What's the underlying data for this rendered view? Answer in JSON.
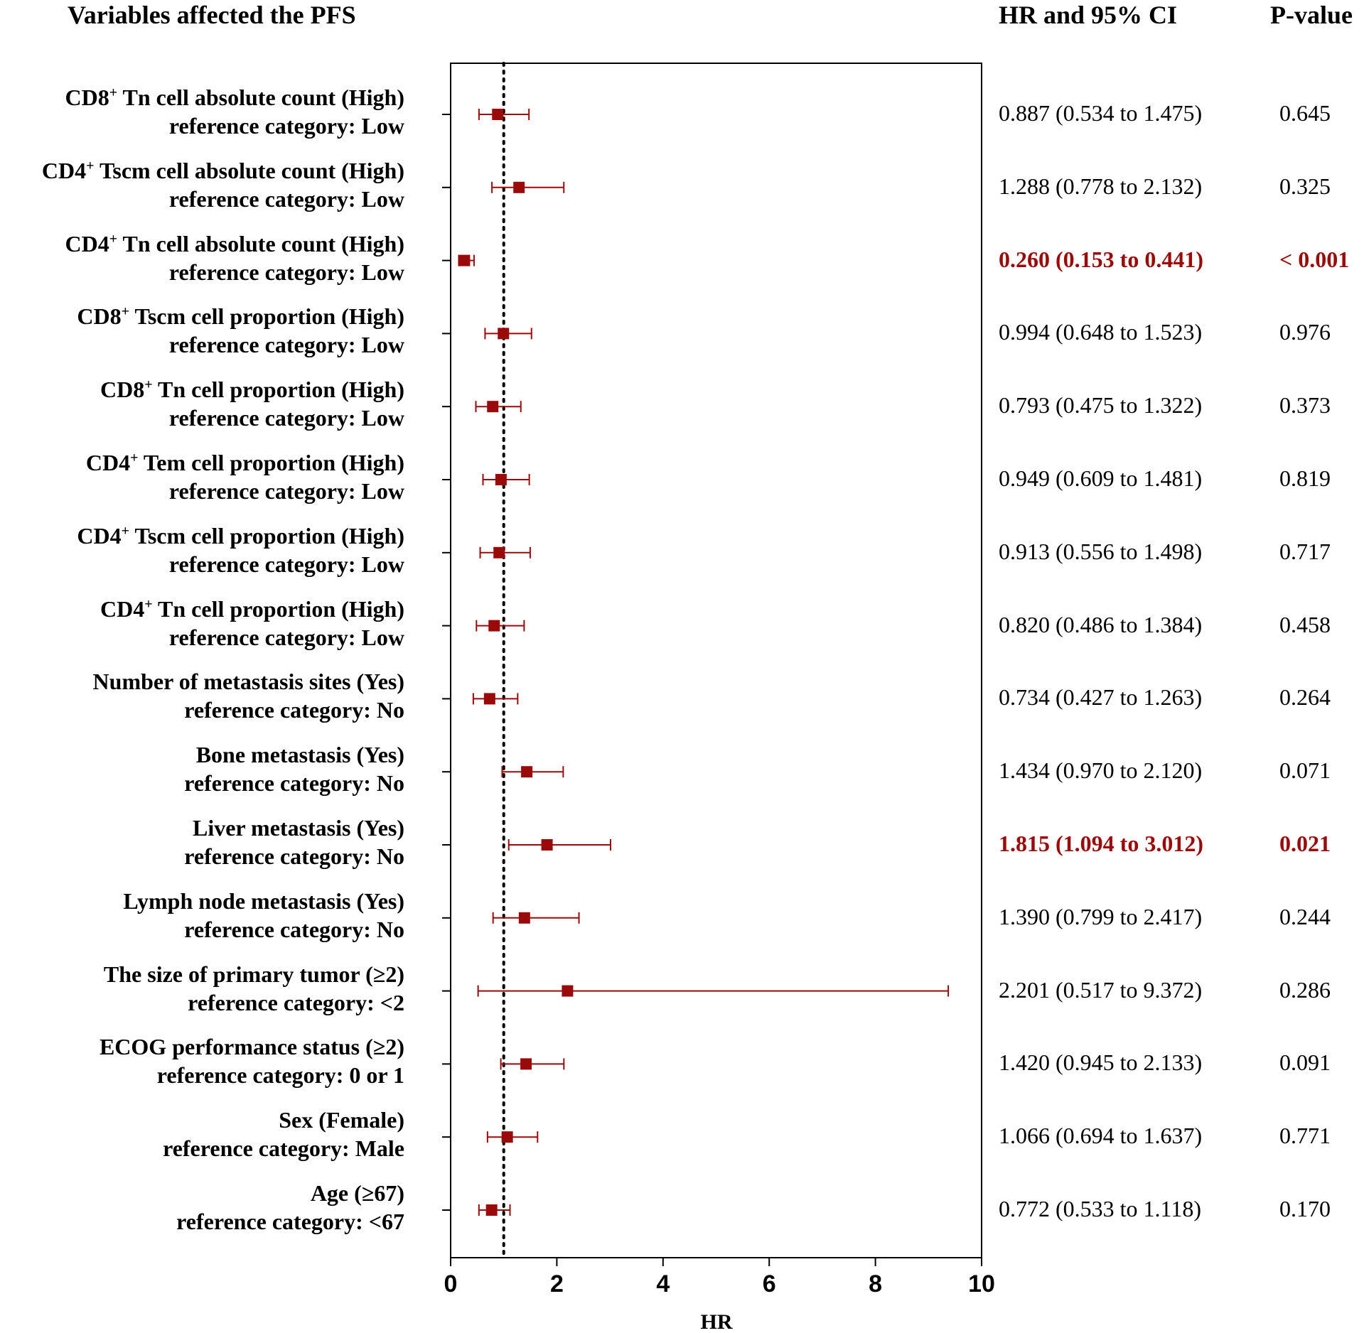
{
  "header": {
    "title": "Variables affected the  PFS",
    "hr_col": "HR and 95% CI",
    "p_col": "P-value"
  },
  "colors": {
    "marker": "#9b0a0a",
    "significant": "#9b0a0a",
    "text": "#000000"
  },
  "chart_data": {
    "type": "forest",
    "title": "Variables affected the  PFS",
    "xlabel": "HR",
    "xlim": [
      0,
      10
    ],
    "xticks": [
      0,
      2,
      4,
      6,
      8,
      10
    ],
    "reference_line": 1,
    "rows": [
      {
        "prefix": "CD8",
        "sup": "+",
        "suffix": " Tn cell absolute count (High)",
        "ref": "reference category: Low",
        "hr": 0.887,
        "lo": 0.534,
        "hi": 1.475,
        "hr_text": "0.887 (0.534 to 1.475)",
        "p": "0.645",
        "sig": false
      },
      {
        "prefix": "CD4",
        "sup": "+",
        "suffix": " Tscm cell absolute count (High)",
        "ref": "reference category: Low",
        "hr": 1.288,
        "lo": 0.778,
        "hi": 2.132,
        "hr_text": "1.288 (0.778 to 2.132)",
        "p": "0.325",
        "sig": false
      },
      {
        "prefix": "CD4",
        "sup": "+",
        "suffix": " Tn cell absolute count (High)",
        "ref": "reference category: Low",
        "hr": 0.26,
        "lo": 0.153,
        "hi": 0.441,
        "hr_text": "0.260 (0.153 to 0.441)",
        "p": "< 0.001",
        "sig": true
      },
      {
        "prefix": "CD8",
        "sup": "+",
        "suffix": " Tscm cell proportion (High)",
        "ref": "reference category: Low",
        "hr": 0.994,
        "lo": 0.648,
        "hi": 1.523,
        "hr_text": "0.994 (0.648 to 1.523)",
        "p": "0.976",
        "sig": false
      },
      {
        "prefix": "CD8",
        "sup": "+",
        "suffix": " Tn cell proportion (High)",
        "ref": "reference category: Low",
        "hr": 0.793,
        "lo": 0.475,
        "hi": 1.322,
        "hr_text": "0.793 (0.475 to 1.322)",
        "p": "0.373",
        "sig": false
      },
      {
        "prefix": "CD4",
        "sup": "+",
        "suffix": " Tem cell proportion (High)",
        "ref": "reference category: Low",
        "hr": 0.949,
        "lo": 0.609,
        "hi": 1.481,
        "hr_text": "0.949 (0.609 to 1.481)",
        "p": "0.819",
        "sig": false
      },
      {
        "prefix": "CD4",
        "sup": "+",
        "suffix": " Tscm cell proportion (High)",
        "ref": "reference category: Low",
        "hr": 0.913,
        "lo": 0.556,
        "hi": 1.498,
        "hr_text": "0.913 (0.556 to 1.498)",
        "p": "0.717",
        "sig": false
      },
      {
        "prefix": "CD4",
        "sup": "+",
        "suffix": " Tn cell proportion (High)",
        "ref": "reference category: Low",
        "hr": 0.82,
        "lo": 0.486,
        "hi": 1.384,
        "hr_text": "0.820 (0.486 to 1.384)",
        "p": "0.458",
        "sig": false
      },
      {
        "prefix": "Number of metastasis sites (Yes)",
        "sup": "",
        "suffix": "",
        "ref": "reference category: No",
        "hr": 0.734,
        "lo": 0.427,
        "hi": 1.263,
        "hr_text": "0.734 (0.427 to 1.263)",
        "p": "0.264",
        "sig": false
      },
      {
        "prefix": "Bone metastasis (Yes)",
        "sup": "",
        "suffix": "",
        "ref": "reference category: No",
        "hr": 1.434,
        "lo": 0.97,
        "hi": 2.12,
        "hr_text": "1.434 (0.970 to 2.120)",
        "p": "0.071",
        "sig": false
      },
      {
        "prefix": "Liver metastasis (Yes)",
        "sup": "",
        "suffix": "",
        "ref": "reference category: No",
        "hr": 1.815,
        "lo": 1.094,
        "hi": 3.012,
        "hr_text": "1.815 (1.094 to 3.012)",
        "p": "0.021",
        "sig": true
      },
      {
        "prefix": "Lymph node metastasis (Yes)",
        "sup": "",
        "suffix": "",
        "ref": "reference category: No",
        "hr": 1.39,
        "lo": 0.799,
        "hi": 2.417,
        "hr_text": "1.390 (0.799 to 2.417)",
        "p": "0.244",
        "sig": false
      },
      {
        "prefix": "The size of primary tumor (≥2)",
        "sup": "",
        "suffix": "",
        "ref": "reference category: <2",
        "hr": 2.201,
        "lo": 0.517,
        "hi": 9.372,
        "hr_text": "2.201 (0.517 to 9.372)",
        "p": "0.286",
        "sig": false
      },
      {
        "prefix": "ECOG performance status (≥2)",
        "sup": "",
        "suffix": "",
        "ref": "reference category: 0 or 1",
        "hr": 1.42,
        "lo": 0.945,
        "hi": 2.133,
        "hr_text": "1.420 (0.945 to 2.133)",
        "p": "0.091",
        "sig": false
      },
      {
        "prefix": "Sex (Female)",
        "sup": "",
        "suffix": "",
        "ref": "reference category: Male",
        "hr": 1.066,
        "lo": 0.694,
        "hi": 1.637,
        "hr_text": "1.066 (0.694 to 1.637)",
        "p": "0.771",
        "sig": false
      },
      {
        "prefix": "Age (≥67)",
        "sup": "",
        "suffix": "",
        "ref": "reference category: <67",
        "hr": 0.772,
        "lo": 0.533,
        "hi": 1.118,
        "hr_text": "0.772 (0.533 to 1.118)",
        "p": "0.170",
        "sig": false
      }
    ]
  }
}
